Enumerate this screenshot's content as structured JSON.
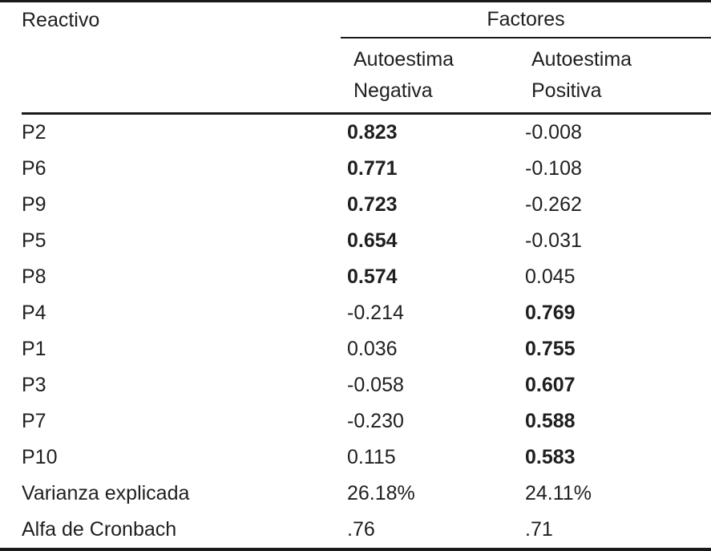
{
  "table": {
    "item_column_header": "Reactivo",
    "group_header": "Factores",
    "factor_headers": [
      {
        "line1": "Autoestima",
        "line2": "Negativa"
      },
      {
        "line1": "Autoestima",
        "line2": "Positiva"
      }
    ],
    "rows": [
      {
        "item": "P2",
        "f1": "0.823",
        "f2": "-0.008"
      },
      {
        "item": "P6",
        "f1": "0.771",
        "f2": "-0.108"
      },
      {
        "item": "P9",
        "f1": "0.723",
        "f2": "-0.262"
      },
      {
        "item": "P5",
        "f1": "0.654",
        "f2": "-0.031"
      },
      {
        "item": "P8",
        "f1": "0.574",
        "f2": "0.045"
      },
      {
        "item": "P4",
        "f1": "-0.214",
        "f2": "0.769"
      },
      {
        "item": "P1",
        "f1": "0.036",
        "f2": "0.755"
      },
      {
        "item": "P3",
        "f1": "-0.058",
        "f2": "0.607"
      },
      {
        "item": "P7",
        "f1": "-0.230",
        "f2": "0.588"
      },
      {
        "item": "P10",
        "f1": "0.115",
        "f2": "0.583"
      }
    ],
    "summary_rows": [
      {
        "item": "Varianza explicada",
        "f1": "26.18%",
        "f2": "24.11%"
      },
      {
        "item": "Alfa de Cronbach",
        "f1": ".76",
        "f2": ".71"
      }
    ]
  },
  "colors": {
    "text": "#1f1f1f",
    "rule": "#1a1a1a"
  }
}
